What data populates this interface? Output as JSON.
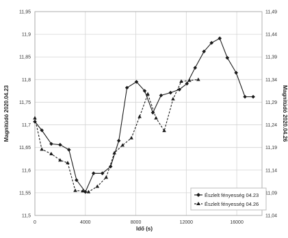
{
  "chart_data": {
    "type": "line",
    "title": "",
    "xlabel": "Idő (s)",
    "ylabel_left": "Magnitúdó 2020.04.23",
    "ylabel_right": "Magnitúdó 2020.04.26",
    "xlim": [
      0,
      18000
    ],
    "ylim_left": [
      11.5,
      11.95
    ],
    "ylim_right": [
      11.04,
      11.49
    ],
    "x_ticks": [
      "0",
      "4000",
      "8000",
      "12000",
      "16000"
    ],
    "x_tick_values": [
      0,
      4000,
      8000,
      12000,
      16000
    ],
    "y_left_ticks": [
      "11,95",
      "11,9",
      "11,85",
      "11,8",
      "11,75",
      "11,7",
      "11,65",
      "11,6",
      "11,55",
      "11,5"
    ],
    "y_left_tick_values": [
      11.95,
      11.9,
      11.85,
      11.8,
      11.75,
      11.7,
      11.65,
      11.6,
      11.55,
      11.5
    ],
    "y_right_ticks": [
      "11,49",
      "11,44",
      "11,39",
      "11,34",
      "11,29",
      "11,24",
      "11,19",
      "11,14",
      "11,09",
      "11,04"
    ],
    "y_right_tick_values": [
      11.49,
      11.44,
      11.39,
      11.34,
      11.29,
      11.24,
      11.19,
      11.14,
      11.09,
      11.04
    ],
    "grid": true,
    "legend_position": "bottom-right",
    "series": [
      {
        "name": "Észlelt fényesség 04.23",
        "axis": "left",
        "color": "#1a1a1a",
        "dash": "solid",
        "marker": "diamond",
        "x": [
          0,
          550,
          1300,
          2000,
          2700,
          3300,
          4000,
          4650,
          5350,
          6000,
          6650,
          7300,
          8050,
          8700,
          9350,
          10000,
          10750,
          11450,
          12050,
          12700,
          13400,
          14000,
          14650,
          15250,
          15950,
          16650,
          17300
        ],
        "y": [
          11.707,
          11.688,
          11.658,
          11.656,
          11.645,
          11.578,
          11.552,
          11.593,
          11.593,
          11.608,
          11.665,
          11.782,
          11.795,
          11.775,
          11.727,
          11.765,
          11.771,
          11.778,
          11.791,
          11.826,
          11.862,
          11.881,
          11.891,
          11.848,
          11.815,
          11.762,
          11.762
        ]
      },
      {
        "name": "Észlelt fényesség 04.26",
        "axis": "right",
        "color": "#1a1a1a",
        "dash": "dashed",
        "marker": "triangle",
        "x": [
          0,
          550,
          1300,
          2000,
          2600,
          3200,
          3800,
          4250,
          4950,
          5650,
          6300,
          6950,
          7650,
          8300,
          8950,
          9600,
          10250,
          10950,
          11600,
          12250,
          12950
        ],
        "y": [
          11.255,
          11.186,
          11.176,
          11.162,
          11.156,
          11.095,
          11.094,
          11.092,
          11.104,
          11.124,
          11.178,
          11.195,
          11.211,
          11.258,
          11.308,
          11.255,
          11.227,
          11.297,
          11.336,
          11.338,
          11.34
        ]
      }
    ]
  }
}
